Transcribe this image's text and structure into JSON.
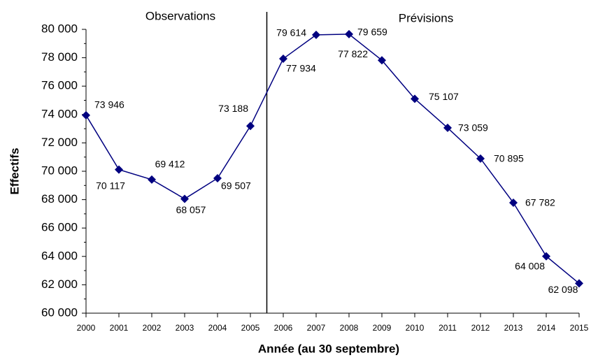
{
  "chart_data": {
    "type": "line",
    "x_label": "Année (au 30 septembre)",
    "y_label": "Effectifs",
    "x": [
      2000,
      2001,
      2002,
      2003,
      2004,
      2005,
      2006,
      2007,
      2008,
      2009,
      2010,
      2011,
      2012,
      2013,
      2014,
      2015
    ],
    "series": [
      {
        "name": "Effectifs",
        "color": "#000080",
        "values": [
          73946,
          70117,
          69412,
          68057,
          69507,
          73188,
          77934,
          79614,
          79659,
          77822,
          75107,
          73059,
          70895,
          67782,
          64008,
          62098
        ],
        "value_labels": [
          "73 946",
          "70 117",
          "69 412",
          "68 057",
          "69 507",
          "73 188",
          "77 934",
          "79 614",
          "79 659",
          "77 822",
          "75 107",
          "73 059",
          "70 895",
          "67 782",
          "64 008",
          "62 098"
        ]
      }
    ],
    "xlim": [
      2000,
      2015
    ],
    "xticks": [
      2000,
      2001,
      2002,
      2003,
      2004,
      2005,
      2006,
      2007,
      2008,
      2009,
      2010,
      2011,
      2012,
      2013,
      2014,
      2015
    ],
    "ylim": [
      60000,
      80000
    ],
    "yticks": [
      {
        "value": 60000,
        "label": "60 000"
      },
      {
        "value": 62000,
        "label": "62 000"
      },
      {
        "value": 64000,
        "label": "64 000"
      },
      {
        "value": 66000,
        "label": "66 000"
      },
      {
        "value": 68000,
        "label": "68 000"
      },
      {
        "value": 70000,
        "label": "70 000"
      },
      {
        "value": 72000,
        "label": "72 000"
      },
      {
        "value": 74000,
        "label": "74 000"
      },
      {
        "value": 76000,
        "label": "76 000"
      },
      {
        "value": 78000,
        "label": "78 000"
      },
      {
        "value": 80000,
        "label": "80 000"
      }
    ],
    "divider": 2005.5,
    "annotations": [
      "Observations",
      "Prévisions"
    ],
    "grid": false
  }
}
